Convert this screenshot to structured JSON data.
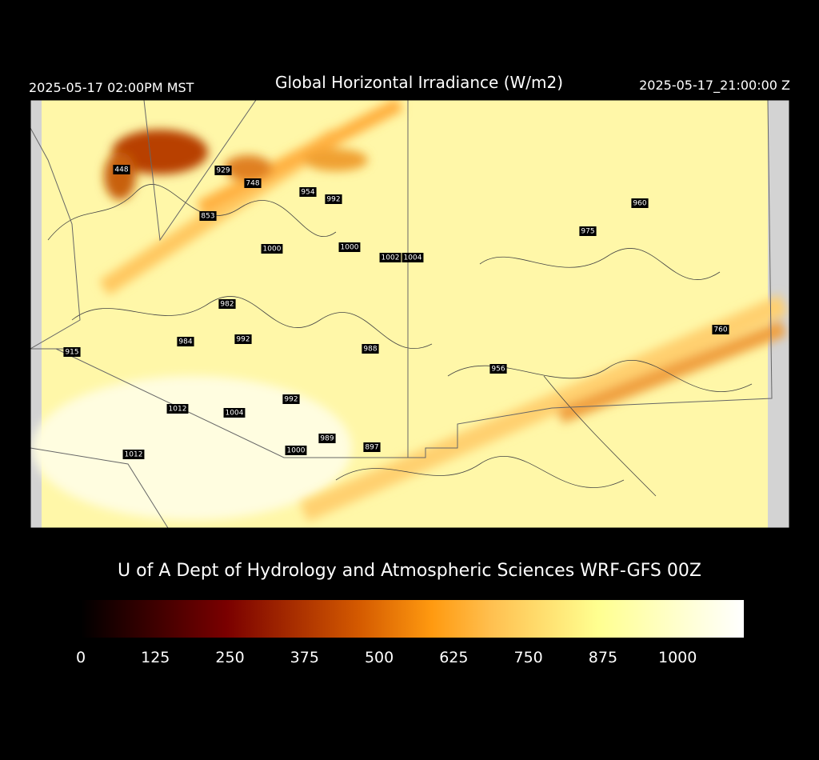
{
  "header": {
    "left": "2025-05-17 02:00PM MST",
    "title": "Global Horizontal Irradiance (W/m2)",
    "right": "2025-05-17_21:00:00 Z"
  },
  "stations": [
    448,
    929,
    748,
    954,
    992,
    853,
    1000,
    1000,
    1002,
    1004,
    960,
    975,
    982,
    992,
    984,
    915,
    988,
    956,
    760,
    992,
    1012,
    1004,
    989,
    1000,
    897,
    1012
  ],
  "credit": "U of A Dept of Hydrology and Atmospheric Sciences WRF-GFS 00Z",
  "colorbar": {
    "range": [
      0,
      1111
    ],
    "ticks": [
      0,
      125,
      250,
      375,
      500,
      625,
      750,
      875,
      1000
    ]
  }
}
